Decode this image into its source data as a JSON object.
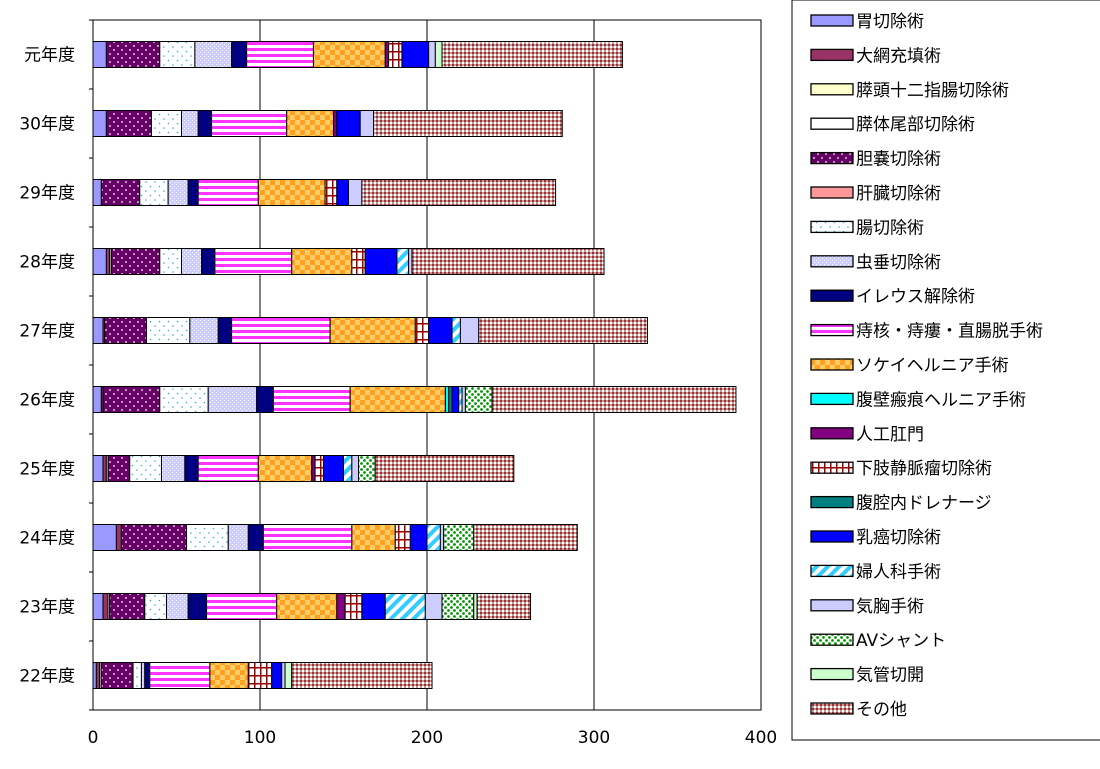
{
  "chart_data": {
    "type": "bar",
    "orientation": "horizontal",
    "stacked": true,
    "categories": [
      "元年度",
      "30年度",
      "29年度",
      "28年度",
      "27年度",
      "26年度",
      "25年度",
      "24年度",
      "23年度",
      "22年度"
    ],
    "xlim": [
      0,
      400
    ],
    "xticks": [
      0,
      100,
      200,
      300,
      400
    ],
    "grid": true,
    "legend_position": "right",
    "series": [
      {
        "name": "胃切除術",
        "color": "#9999ff",
        "pattern": "solid",
        "values": [
          8,
          8,
          5,
          8,
          6,
          5,
          6,
          14,
          6,
          2
        ]
      },
      {
        "name": "大網充填術",
        "color": "#993366",
        "pattern": "solid",
        "values": [
          0,
          0,
          0,
          2,
          1,
          1,
          2,
          3,
          3,
          2
        ]
      },
      {
        "name": "膵頭十二指腸切除術",
        "color": "#ffffcc",
        "pattern": "solid",
        "values": [
          0,
          0,
          0,
          0,
          0,
          0,
          0,
          0,
          0,
          0
        ]
      },
      {
        "name": "膵体尾部切除術",
        "color": "#ffffff",
        "pattern": "solid",
        "values": [
          0,
          0,
          0,
          1,
          0,
          0,
          1,
          0,
          1,
          1
        ]
      },
      {
        "name": "胆嚢切除術",
        "color": "#660066",
        "pattern": "dots",
        "values": [
          32,
          27,
          23,
          29,
          25,
          34,
          13,
          39,
          21,
          19
        ]
      },
      {
        "name": "肝臓切除術",
        "color": "#ff9999",
        "pattern": "solid",
        "values": [
          0,
          0,
          0,
          0,
          0,
          0,
          0,
          0,
          0,
          0
        ]
      },
      {
        "name": "腸切除術",
        "color": "#ffffff",
        "pattern": "sparse",
        "values": [
          21,
          18,
          17,
          13,
          26,
          29,
          19,
          25,
          13,
          5
        ]
      },
      {
        "name": "虫垂切除術",
        "color": "#ccccff",
        "pattern": "fine",
        "values": [
          22,
          10,
          12,
          12,
          17,
          29,
          14,
          12,
          13,
          2
        ]
      },
      {
        "name": "イレウス解除術",
        "color": "#000080",
        "pattern": "solid",
        "values": [
          9,
          8,
          6,
          8,
          8,
          10,
          8,
          9,
          11,
          3
        ]
      },
      {
        "name": "痔核・痔瘻・直腸脱手術",
        "color": "#ff33ff",
        "pattern": "hstripe",
        "values": [
          40,
          45,
          36,
          46,
          59,
          46,
          36,
          53,
          42,
          36
        ]
      },
      {
        "name": "ソケイヘルニア手術",
        "color": "#ffcc66",
        "pattern": "checker",
        "values": [
          43,
          28,
          40,
          36,
          51,
          57,
          32,
          26,
          36,
          23
        ]
      },
      {
        "name": "腹壁瘢痕ヘルニア手術",
        "color": "#00ffff",
        "pattern": "solid",
        "values": [
          0,
          0,
          0,
          0,
          0,
          2,
          0,
          0,
          0,
          0
        ]
      },
      {
        "name": "人工肛門",
        "color": "#800080",
        "pattern": "solid",
        "values": [
          2,
          2,
          0,
          0,
          0,
          0,
          2,
          0,
          5,
          0
        ]
      },
      {
        "name": "下肢静脈瘤切除術",
        "color": "#ffffff",
        "pattern": "grid-red",
        "values": [
          8,
          0,
          7,
          8,
          8,
          0,
          5,
          9,
          10,
          14
        ]
      },
      {
        "name": "腹腔内ドレナージ",
        "color": "#008080",
        "pattern": "solid",
        "values": [
          0,
          0,
          0,
          0,
          0,
          2,
          0,
          0,
          0,
          0
        ]
      },
      {
        "name": "乳癌切除術",
        "color": "#0000ff",
        "pattern": "solid",
        "values": [
          16,
          14,
          7,
          19,
          14,
          4,
          12,
          10,
          14,
          6
        ]
      },
      {
        "name": "婦人科手術",
        "color": "#33ccff",
        "pattern": "diag",
        "values": [
          0,
          0,
          0,
          7,
          5,
          2,
          5,
          8,
          24,
          0
        ]
      },
      {
        "name": "気胸手術",
        "color": "#ccccff",
        "pattern": "solid",
        "values": [
          4,
          8,
          8,
          2,
          11,
          2,
          4,
          2,
          10,
          2
        ]
      },
      {
        "name": "AVシャント",
        "color": "#009900",
        "pattern": "dots-green",
        "values": [
          0,
          0,
          0,
          0,
          0,
          16,
          10,
          18,
          19,
          0
        ]
      },
      {
        "name": "気管切開",
        "color": "#ccffcc",
        "pattern": "solid",
        "values": [
          4,
          0,
          0,
          0,
          0,
          0,
          0,
          0,
          2,
          4
        ]
      },
      {
        "name": "その他",
        "color": "#cc9999",
        "pattern": "crosshatch",
        "values": [
          108,
          113,
          116,
          115,
          101,
          146,
          83,
          62,
          32,
          84
        ]
      }
    ]
  }
}
